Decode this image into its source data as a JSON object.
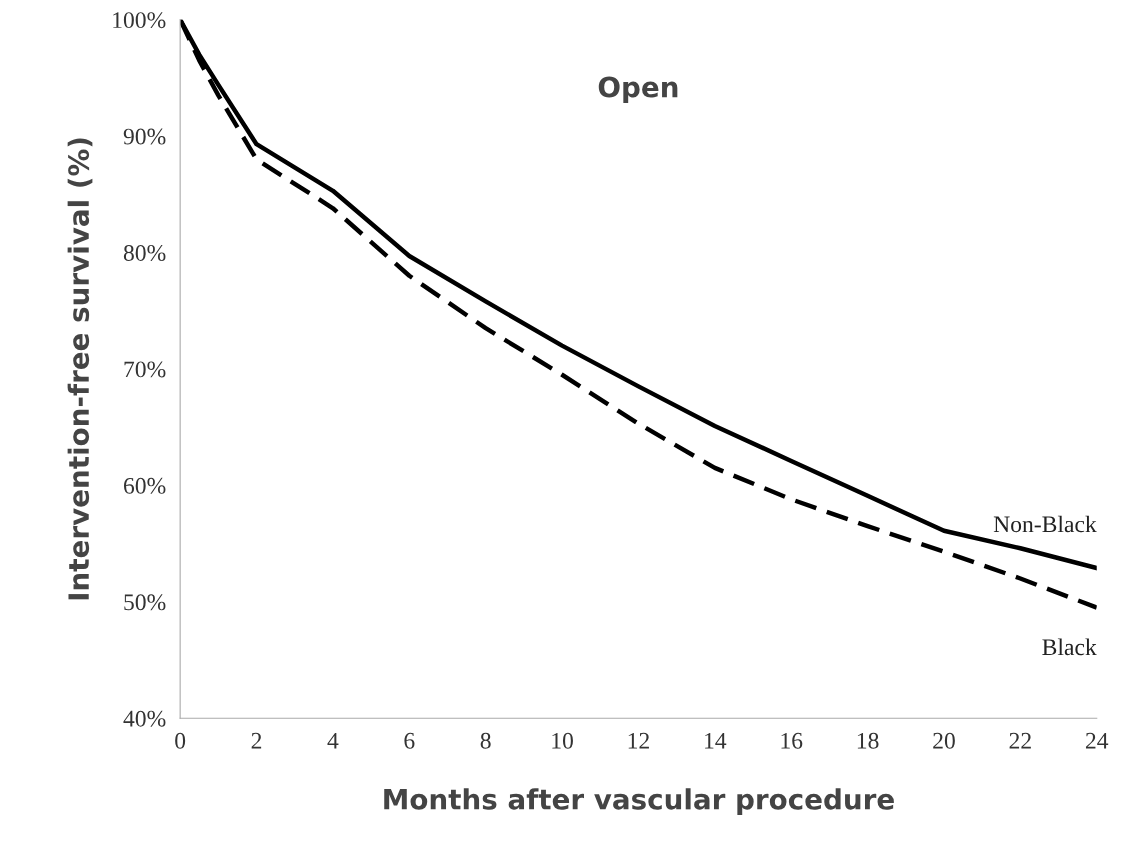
{
  "chart_data": {
    "type": "line",
    "title": "Open",
    "xlabel": "Months after vascular procedure",
    "ylabel": "Intervention-free survival (%)",
    "x": [
      0,
      0.5,
      1,
      2,
      4,
      6,
      8,
      10,
      12,
      14,
      16,
      18,
      20,
      22,
      24
    ],
    "series": [
      {
        "name": "Non-Black",
        "color": "#000000",
        "line_style": "solid",
        "values": [
          100,
          97,
          94.4,
          89.3,
          85.3,
          79.7,
          75.8,
          72,
          68.5,
          65.1,
          62.1,
          59.1,
          56.1,
          54.6,
          52.9
        ]
      },
      {
        "name": "Black",
        "color": "#000000",
        "line_style": "dashed",
        "values": [
          100,
          96.5,
          93.5,
          88,
          83.8,
          78,
          73.5,
          69.5,
          65.3,
          61.5,
          58.8,
          56.5,
          54.3,
          52,
          49.5
        ]
      }
    ],
    "xlim": [
      0,
      24
    ],
    "xticks": [
      0,
      2,
      4,
      6,
      8,
      10,
      12,
      14,
      16,
      18,
      20,
      22,
      24
    ],
    "ylim": [
      40,
      100
    ],
    "yticks": [
      {
        "value": 40,
        "label": "40%"
      },
      {
        "value": 50,
        "label": "50%"
      },
      {
        "value": 60,
        "label": "60%"
      },
      {
        "value": 70,
        "label": "70%"
      },
      {
        "value": 80,
        "label": "80%"
      },
      {
        "value": 90,
        "label": "90%"
      },
      {
        "value": 100,
        "label": "100%"
      }
    ],
    "grid": false,
    "legend": false,
    "marker": "none"
  }
}
